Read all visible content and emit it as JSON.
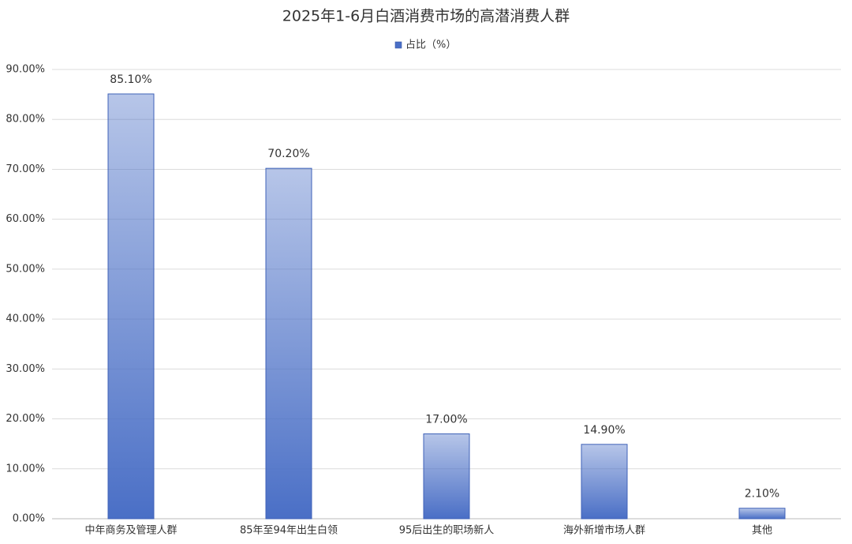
{
  "chart_data": {
    "type": "bar",
    "title": "2025年1-6月白酒消费市场的高潜消费人群",
    "categories": [
      "中年商务及管理人群",
      "85年至94年出生白领",
      "95后出生的职场新人",
      "海外新增市场人群",
      "其他"
    ],
    "series": [
      {
        "name": "占比（%）",
        "color": "#4a6fc6",
        "values": [
          85.1,
          70.2,
          17.0,
          14.9,
          2.1
        ],
        "value_labels": [
          "85.10%",
          "70.20%",
          "17.00%",
          "14.90%",
          "2.10%"
        ]
      }
    ],
    "ylim": [
      0,
      90
    ],
    "yticks": [
      {
        "value": 0,
        "label": "0.00%"
      },
      {
        "value": 10,
        "label": "10.00%"
      },
      {
        "value": 20,
        "label": "20.00%"
      },
      {
        "value": 30,
        "label": "30.00%"
      },
      {
        "value": 40,
        "label": "40.00%"
      },
      {
        "value": 50,
        "label": "50.00%"
      },
      {
        "value": 60,
        "label": "60.00%"
      },
      {
        "value": 70,
        "label": "70.00%"
      },
      {
        "value": 80,
        "label": "80.00%"
      },
      {
        "value": 90,
        "label": "90.00%"
      }
    ],
    "grid": true,
    "legend": "top"
  }
}
